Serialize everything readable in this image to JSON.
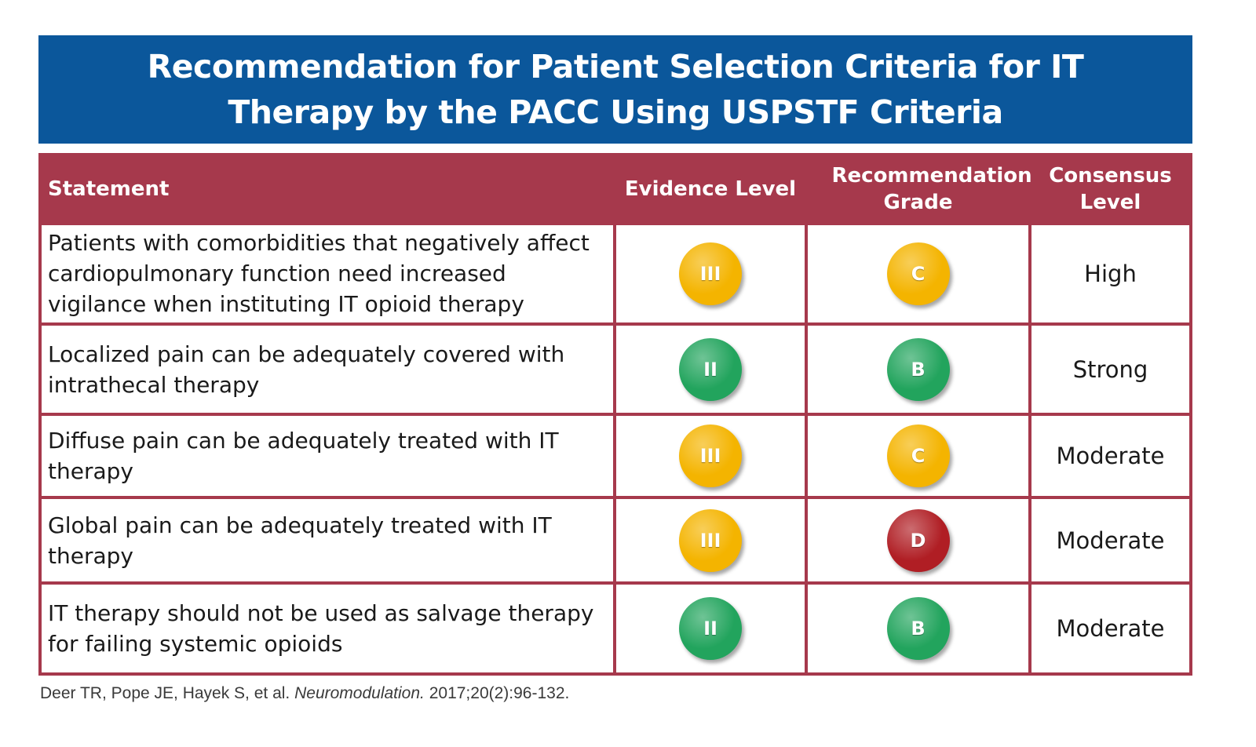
{
  "title": "Recommendation for Patient Selection Criteria for IT Therapy by the PACC Using USPSTF Criteria",
  "table": {
    "headers": {
      "statement": "Statement",
      "evidence": "Evidence Level",
      "grade": "Recommendation Grade",
      "consensus": "Consensus Level"
    },
    "rows": [
      {
        "statement": "Patients with comorbidities that negatively affect cardiopulmonary function need increased vigilance when instituting IT opioid therapy",
        "evidence": "III",
        "evidence_color": "#f4b400",
        "grade": "C",
        "grade_color": "#f4b400",
        "consensus": "High"
      },
      {
        "statement": "Localized pain can be adequately covered with intrathecal therapy",
        "evidence": "II",
        "evidence_color": "#22a45d",
        "grade": "B",
        "grade_color": "#22a45d",
        "consensus": "Strong"
      },
      {
        "statement": "Diffuse pain can be adequately treated with IT therapy",
        "evidence": "III",
        "evidence_color": "#f4b400",
        "grade": "C",
        "grade_color": "#f4b400",
        "consensus": "Moderate"
      },
      {
        "statement": "Global pain can be adequately treated with IT therapy",
        "evidence": "III",
        "evidence_color": "#f4b400",
        "grade": "D",
        "grade_color": "#b01e24",
        "consensus": "Moderate"
      },
      {
        "statement": "IT therapy should not be used as salvage therapy for failing systemic opioids",
        "evidence": "II",
        "evidence_color": "#22a45d",
        "grade": "B",
        "grade_color": "#22a45d",
        "consensus": "Moderate"
      }
    ]
  },
  "citation": {
    "authors": "Deer TR, Pope JE, Hayek S, et al.",
    "journal": "Neuromodulation.",
    "details": "2017;20(2):96-132."
  }
}
